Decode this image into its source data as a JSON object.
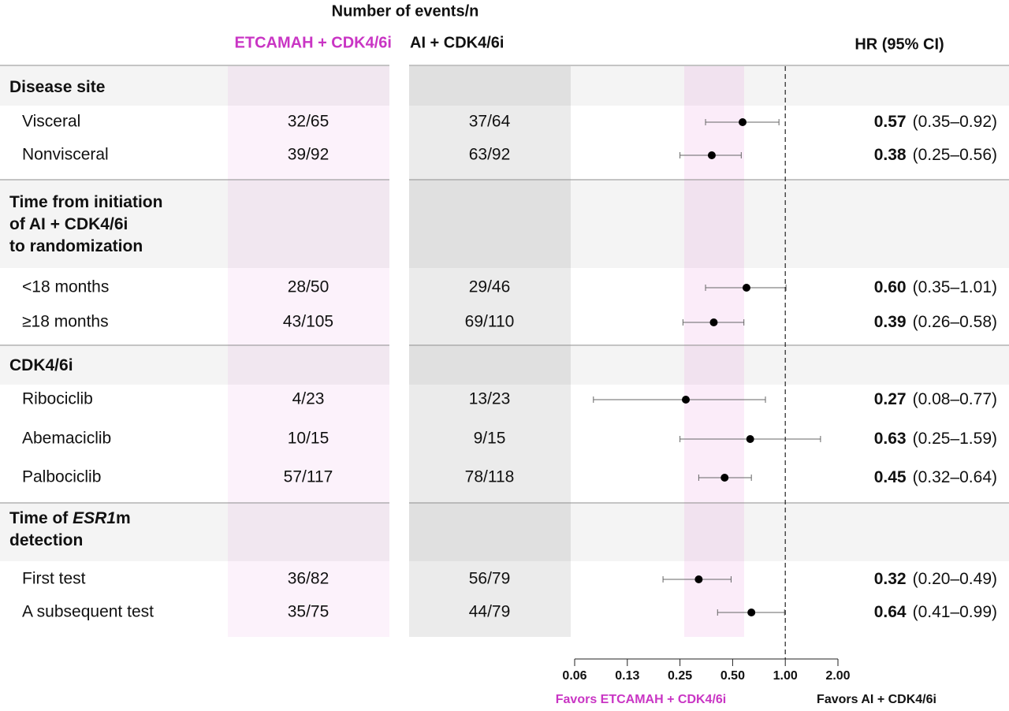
{
  "chart_data": {
    "type": "forest",
    "events_header": "Number of events/n",
    "columns": [
      "ETCAMAH + CDK4/6i",
      "AI + CDK4/6i",
      "HR (95% CI)"
    ],
    "groups": [
      {
        "title": [
          [
            "Disease site"
          ]
        ],
        "rows": [
          {
            "label": "Visceral",
            "etcamah": "32/65",
            "ai": "37/64",
            "hr": 0.57,
            "ci": [
              0.35,
              0.92
            ],
            "hr_label": "0.57",
            "ci_label": "(0.35–0.92)"
          },
          {
            "label": "Nonvisceral",
            "etcamah": "39/92",
            "ai": "63/92",
            "hr": 0.38,
            "ci": [
              0.25,
              0.56
            ],
            "hr_label": "0.38",
            "ci_label": "(0.25–0.56)"
          }
        ]
      },
      {
        "title": [
          [
            "Time from initiation"
          ],
          [
            "of AI + CDK4/6i"
          ],
          [
            "to randomization"
          ]
        ],
        "rows": [
          {
            "label": "<18 months",
            "etcamah": "28/50",
            "ai": "29/46",
            "hr": 0.6,
            "ci": [
              0.35,
              1.01
            ],
            "hr_label": "0.60",
            "ci_label": "(0.35–1.01)"
          },
          {
            "label": "≥18 months",
            "etcamah": "43/105",
            "ai": "69/110",
            "hr": 0.39,
            "ci": [
              0.26,
              0.58
            ],
            "hr_label": "0.39",
            "ci_label": "(0.26–0.58)"
          }
        ]
      },
      {
        "title": [
          [
            "CDK4/6i"
          ]
        ],
        "rows": [
          {
            "label": "Ribociclib",
            "etcamah": "4/23",
            "ai": "13/23",
            "hr": 0.27,
            "ci": [
              0.08,
              0.77
            ],
            "hr_label": "0.27",
            "ci_label": "(0.08–0.77)"
          },
          {
            "label": "Abemaciclib",
            "etcamah": "10/15",
            "ai": "9/15",
            "hr": 0.63,
            "ci": [
              0.25,
              1.59
            ],
            "hr_label": "0.63",
            "ci_label": "(0.25–1.59)"
          },
          {
            "label": "Palbociclib",
            "etcamah": "57/117",
            "ai": "78/118",
            "hr": 0.45,
            "ci": [
              0.32,
              0.64
            ],
            "hr_label": "0.45",
            "ci_label": "(0.32–0.64)"
          }
        ]
      },
      {
        "title": [
          [
            "Time of ",
            "ESR1",
            "m"
          ],
          [
            "detection"
          ]
        ],
        "italic": [
          0,
          1
        ],
        "rows": [
          {
            "label": "First test",
            "etcamah": "36/82",
            "ai": "56/79",
            "hr": 0.32,
            "ci": [
              0.2,
              0.49
            ],
            "hr_label": "0.32",
            "ci_label": "(0.20–0.49)"
          },
          {
            "label": "A subsequent test",
            "etcamah": "35/75",
            "ai": "44/79",
            "hr": 0.64,
            "ci": [
              0.41,
              0.99
            ],
            "hr_label": "0.64",
            "ci_label": "(0.41–0.99)"
          }
        ]
      }
    ],
    "log_scale": true,
    "xlim": [
      0.0625,
      2
    ],
    "xticks": [
      {
        "value": 0.0625,
        "label": "0.06"
      },
      {
        "value": 0.125,
        "label": "0.13"
      },
      0.25,
      {
        "value": 0.5,
        "label": "0.50"
      },
      {
        "value": 1,
        "label": "1.00"
      },
      {
        "value": 2,
        "label": "2.00"
      }
    ],
    "reference_line": 1,
    "favors_left": "Favors ETCAMAH + CDK4/6i",
    "favors_right": "Favors AI + CDK4/6i",
    "color": "#000000",
    "accent_color": "#c935c4",
    "group_color": "#6a1462"
  }
}
